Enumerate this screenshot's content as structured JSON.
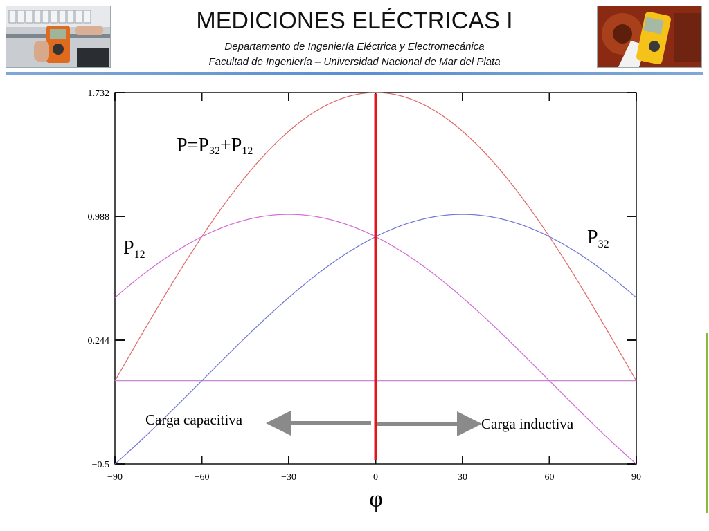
{
  "header": {
    "title": "MEDICIONES ELÉCTRICAS I",
    "subtitle_1": "Departamento de Ingeniería Eléctrica y Electromecánica",
    "subtitle_2": "Facultad de Ingeniería – Universidad Nacional de Mar del Plata"
  },
  "colors": {
    "total": "#e06666",
    "p12": "#d36ad6",
    "p32": "#6f76d6",
    "reference": "#c07ac9",
    "zero_line": "#e0161b",
    "arrows": "#8a8a8a",
    "rule": "#5b8fd0"
  },
  "chart_data": {
    "type": "line",
    "xlabel": "φ",
    "ylabel": "",
    "xlim": [
      -90,
      90
    ],
    "ylim": [
      -0.5,
      1.732
    ],
    "x_ticks": [
      -90,
      -60,
      -30,
      0,
      30,
      60,
      90
    ],
    "x_tick_labels": [
      "−90",
      "−60",
      "−30",
      "0",
      "30",
      "60",
      "90"
    ],
    "y_ticks": [
      -0.5,
      0.244,
      0.988,
      1.732
    ],
    "y_tick_labels": [
      "−0.5",
      "0.244",
      "0.988",
      "1.732"
    ],
    "x": [
      -90,
      -75,
      -60,
      -45,
      -30,
      -15,
      0,
      15,
      30,
      45,
      60,
      75,
      90
    ],
    "series": [
      {
        "name": "P=P32+P12",
        "values": [
          0.0,
          0.448,
          0.866,
          1.225,
          1.5,
          1.673,
          1.732,
          1.673,
          1.5,
          1.225,
          0.866,
          0.448,
          0.0
        ]
      },
      {
        "name": "P12",
        "values": [
          0.5,
          0.707,
          0.866,
          0.966,
          1.0,
          0.966,
          0.866,
          0.707,
          0.5,
          0.259,
          0.0,
          -0.259,
          -0.5
        ]
      },
      {
        "name": "P32",
        "values": [
          -0.5,
          -0.259,
          0.0,
          0.259,
          0.5,
          0.707,
          0.866,
          0.966,
          1.0,
          0.966,
          0.866,
          0.707,
          0.5
        ]
      }
    ],
    "reference_line_y": 0.0,
    "zero_marker_x": 0,
    "labels": {
      "total_prefix": "P=P",
      "total_sub_1": "32",
      "total_plus": "+P",
      "total_sub_2": "12",
      "p12_main": "P",
      "p12_sub": "12",
      "p32_main": "P",
      "p32_sub": "32"
    },
    "annotations": {
      "capacitive": "Carga capacitiva",
      "inductive": "Carga inductiva"
    }
  }
}
